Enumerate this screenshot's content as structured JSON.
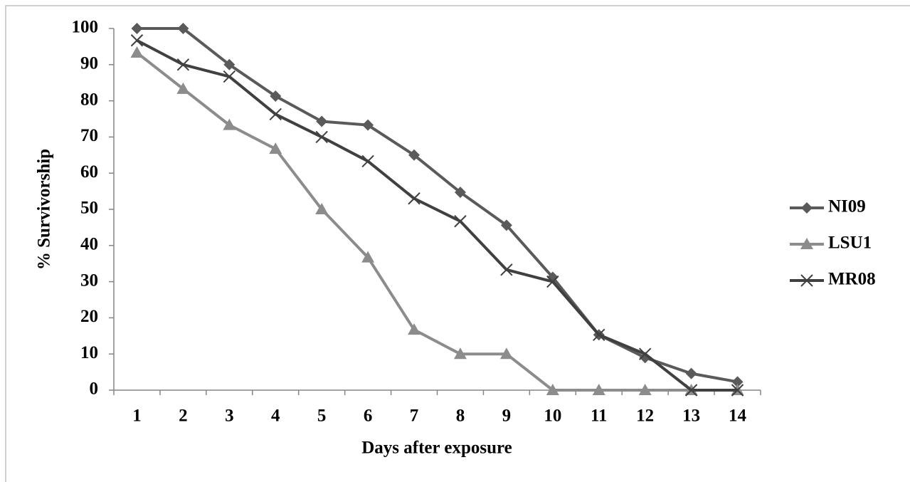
{
  "chart_data": {
    "type": "line",
    "x_label": "Days after exposure",
    "y_label": "% Survivorship",
    "categories": [
      "1",
      "2",
      "3",
      "4",
      "5",
      "6",
      "7",
      "8",
      "9",
      "10",
      "11",
      "12",
      "13",
      "14"
    ],
    "series": [
      {
        "name": "NI09",
        "color": "#5a5a5a",
        "marker": "diamond",
        "values": [
          100,
          100,
          90,
          81.3,
          74.3,
          73.3,
          65,
          54.7,
          45.6,
          31.2,
          15.3,
          9,
          4.6,
          2.3
        ]
      },
      {
        "name": "LSU1",
        "color": "#8c8c8c",
        "marker": "triangle",
        "values": [
          93.3,
          83.3,
          73.3,
          66.7,
          50,
          36.7,
          16.7,
          10,
          10,
          0,
          0,
          0,
          0,
          0
        ]
      },
      {
        "name": "MR08",
        "color": "#404040",
        "marker": "x",
        "values": [
          96.7,
          90,
          86.7,
          76.3,
          70,
          63.3,
          53,
          46.7,
          33.3,
          30,
          15.3,
          10,
          0,
          0
        ]
      }
    ],
    "ylim": [
      0,
      100
    ],
    "yticks": [
      0,
      10,
      20,
      30,
      40,
      50,
      60,
      70,
      80,
      90,
      100
    ],
    "grid": false,
    "legend": "right"
  }
}
